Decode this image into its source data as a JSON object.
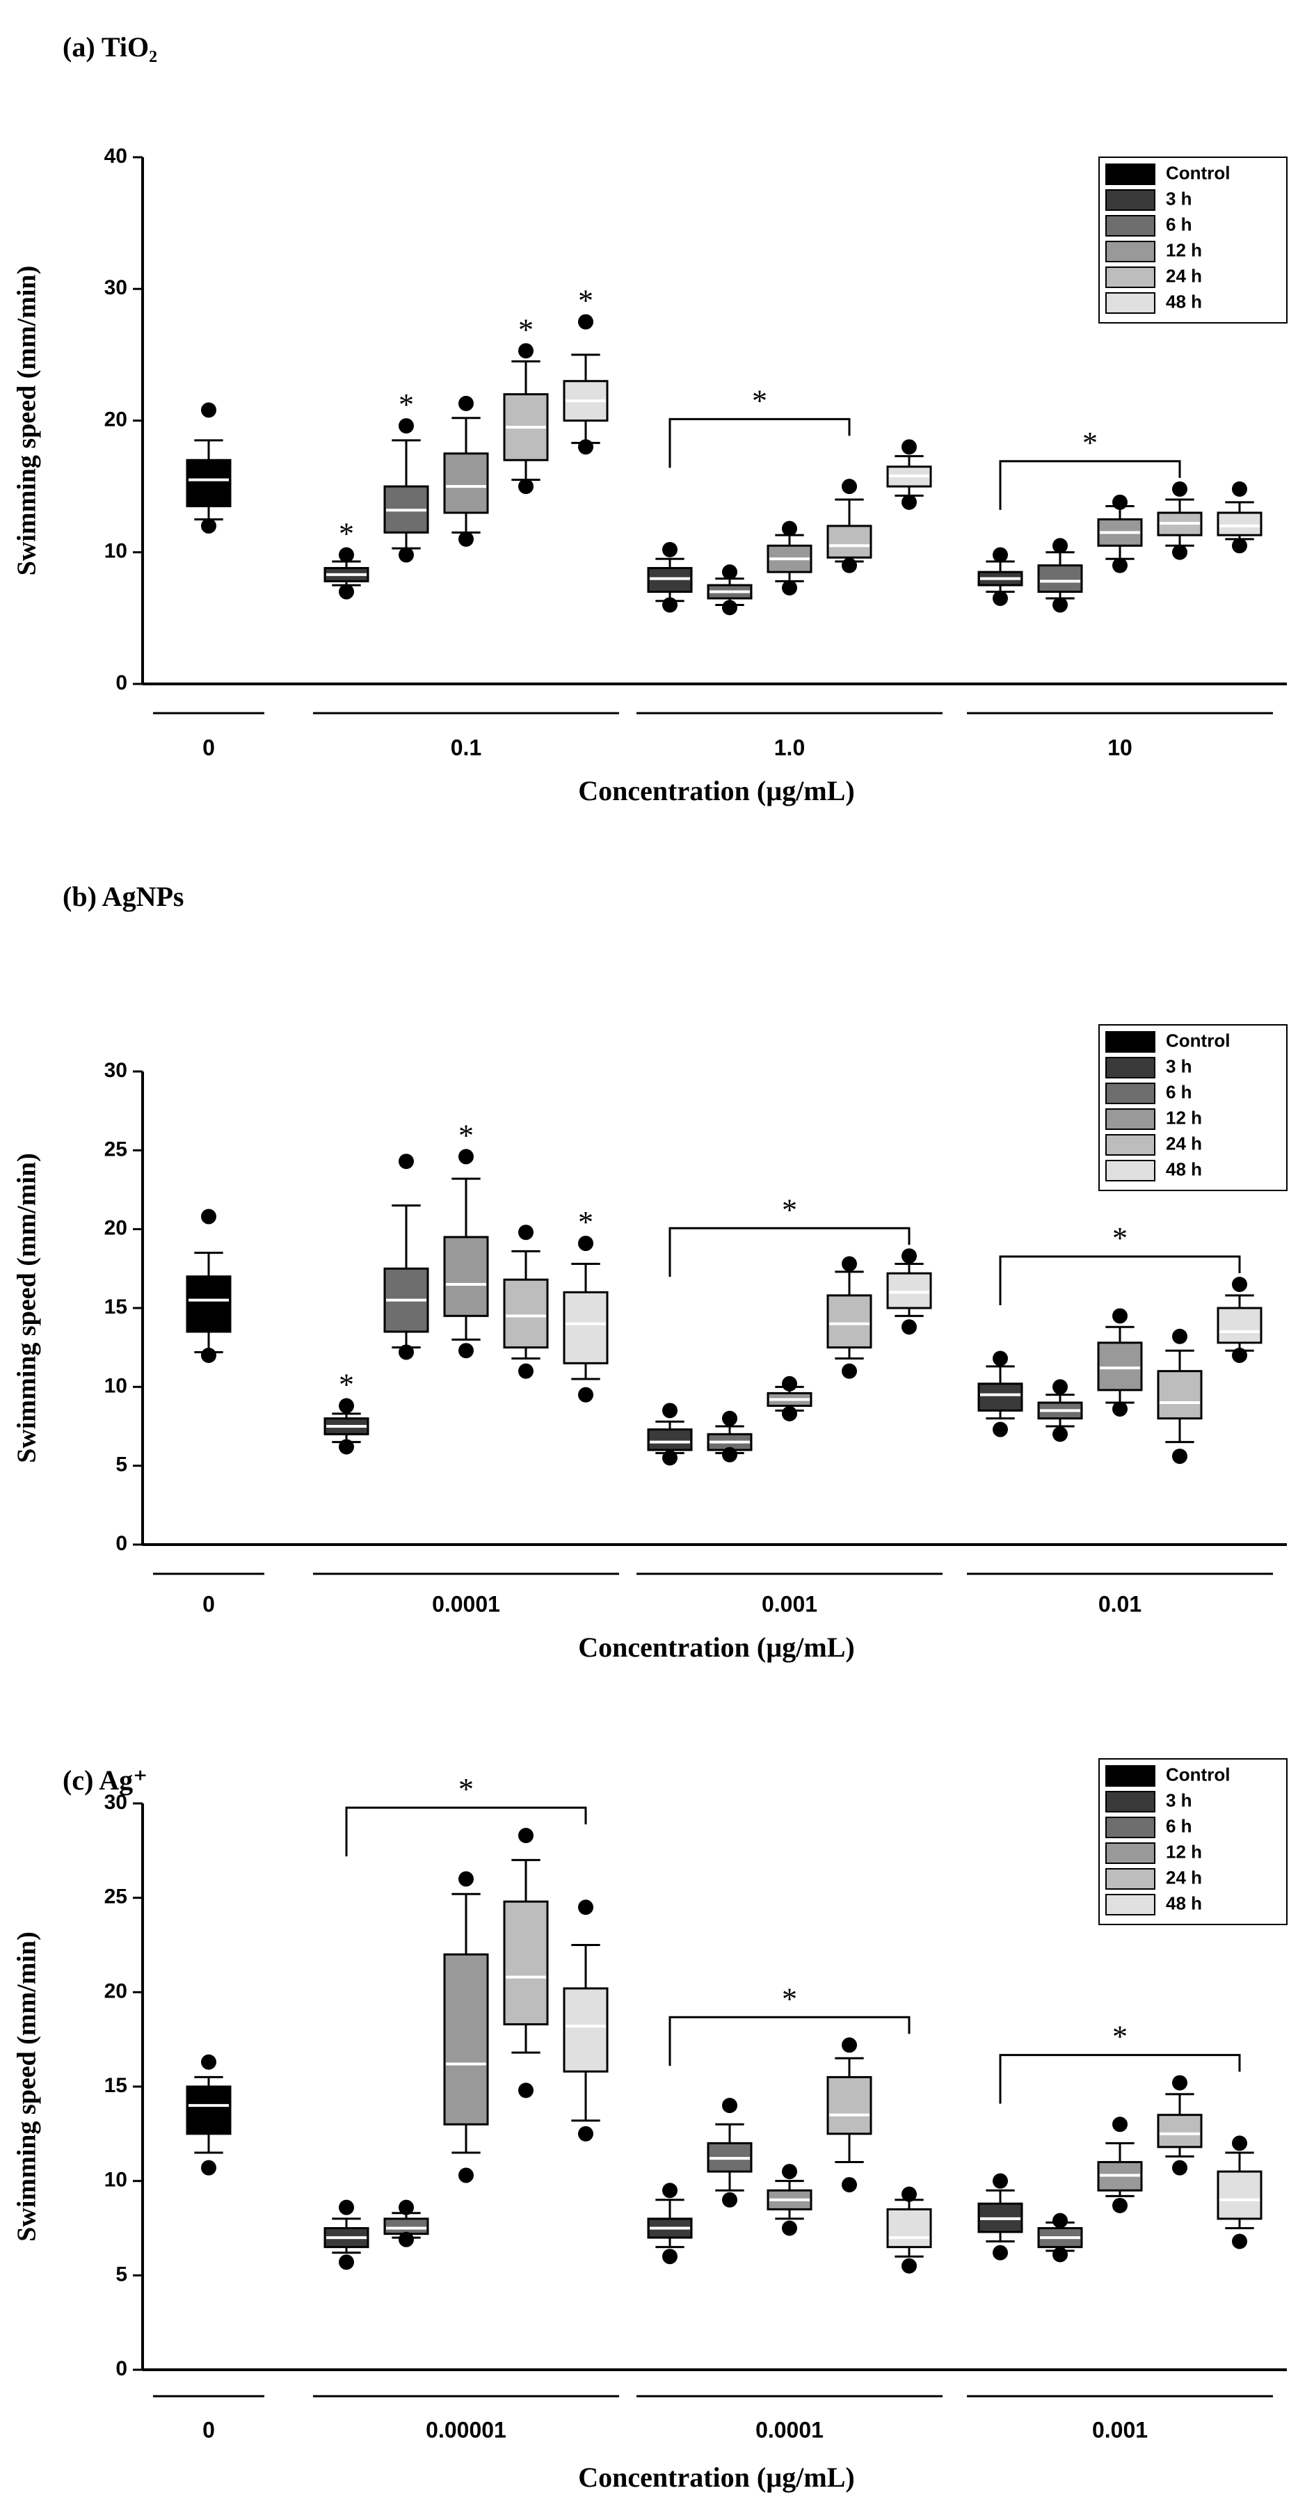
{
  "chart_data": [
    {
      "type": "box",
      "title": "(a) TiO₂",
      "x_label": "Concentration (µg/mL)",
      "y_label": "Swimming speed (mm/min)",
      "categories": [
        "0",
        "0.1",
        "1.0",
        "10"
      ],
      "ylim": [
        0,
        40
      ],
      "yticks": [
        0,
        10,
        20,
        30,
        40
      ],
      "legend": "upper right",
      "median_color": "#ffffff",
      "series": [
        {
          "name": "Control",
          "color": "#000000",
          "values": [
            {
              "min": 12.5,
              "q1": 13.5,
              "median": 15.5,
              "q3": 17,
              "max": 18.5,
              "outliers": [
                12,
                20.8
              ]
            },
            null,
            null,
            null
          ]
        },
        {
          "name": "3 h",
          "color": "#3a3a3a",
          "values": [
            null,
            {
              "min": 7.5,
              "q1": 7.8,
              "median": 8.3,
              "q3": 8.8,
              "max": 9.3,
              "outliers": [
                7,
                9.8
              ]
            },
            {
              "min": 6.3,
              "q1": 7,
              "median": 8,
              "q3": 8.8,
              "max": 9.5,
              "outliers": [
                6,
                10.2
              ]
            },
            {
              "min": 7,
              "q1": 7.5,
              "median": 8,
              "q3": 8.5,
              "max": 9.3,
              "outliers": [
                6.5,
                9.8
              ]
            }
          ]
        },
        {
          "name": "6 h",
          "color": "#6e6e6e",
          "values": [
            null,
            {
              "min": 10.3,
              "q1": 11.5,
              "median": 13.2,
              "q3": 15,
              "max": 18.5,
              "outliers": [
                9.8,
                19.6
              ]
            },
            {
              "min": 6,
              "q1": 6.5,
              "median": 7,
              "q3": 7.5,
              "max": 8,
              "outliers": [
                5.8,
                8.5
              ]
            },
            {
              "min": 6.5,
              "q1": 7,
              "median": 7.8,
              "q3": 9,
              "max": 10,
              "outliers": [
                6,
                10.5
              ]
            }
          ]
        },
        {
          "name": "12 h",
          "color": "#999999",
          "values": [
            null,
            {
              "min": 11.5,
              "q1": 13,
              "median": 15,
              "q3": 17.5,
              "max": 20.2,
              "outliers": [
                11,
                21.3
              ]
            },
            {
              "min": 7.8,
              "q1": 8.5,
              "median": 9.5,
              "q3": 10.5,
              "max": 11.3,
              "outliers": [
                7.3,
                11.8
              ]
            },
            {
              "min": 9.5,
              "q1": 10.5,
              "median": 11.5,
              "q3": 12.5,
              "max": 13.5,
              "outliers": [
                9,
                13.8
              ]
            }
          ]
        },
        {
          "name": "24 h",
          "color": "#bdbdbd",
          "values": [
            null,
            {
              "min": 15.5,
              "q1": 17,
              "median": 19.5,
              "q3": 22,
              "max": 24.5,
              "outliers": [
                15,
                25.3
              ]
            },
            {
              "min": 9.3,
              "q1": 9.6,
              "median": 10.5,
              "q3": 12,
              "max": 14,
              "outliers": [
                9,
                15
              ]
            },
            {
              "min": 10.5,
              "q1": 11.3,
              "median": 12.2,
              "q3": 13,
              "max": 14,
              "outliers": [
                10,
                14.8
              ]
            }
          ]
        },
        {
          "name": "48 h",
          "color": "#e0e0e0",
          "values": [
            null,
            {
              "min": 18.3,
              "q1": 20,
              "median": 21.5,
              "q3": 23,
              "max": 25,
              "outliers": [
                18,
                27.5
              ]
            },
            {
              "min": 14.3,
              "q1": 15,
              "median": 15.8,
              "q3": 16.5,
              "max": 17.3,
              "outliers": [
                13.8,
                18
              ]
            },
            {
              "min": 11,
              "q1": 11.3,
              "median": 12,
              "q3": 13,
              "max": 13.8,
              "outliers": [
                10.5,
                14.8
              ]
            }
          ]
        }
      ],
      "annotations": [
        {
          "text": "*",
          "category": "0.1",
          "series": "3 h"
        },
        {
          "text": "*",
          "category": "0.1",
          "series": "6 h"
        },
        {
          "text": "*",
          "category": "0.1",
          "series": "24 h"
        },
        {
          "text": "*",
          "category": "0.1",
          "series": "48 h"
        },
        {
          "text": "*",
          "category": "1.0",
          "from": "3 h",
          "to": "24 h"
        },
        {
          "text": "*",
          "category": "10",
          "from": "3 h",
          "to": "24 h"
        }
      ]
    },
    {
      "type": "box",
      "title": "(b) AgNPs",
      "x_label": "Concentration (µg/mL)",
      "y_label": "Swimming speed (mm/min)",
      "categories": [
        "0",
        "0.0001",
        "0.001",
        "0.01"
      ],
      "ylim": [
        0,
        30
      ],
      "yticks": [
        0,
        5,
        10,
        15,
        20,
        25,
        30
      ],
      "legend": "upper right",
      "median_color": "#ffffff",
      "series": [
        {
          "name": "Control",
          "color": "#000000",
          "values": [
            {
              "min": 12.2,
              "q1": 13.5,
              "median": 15.5,
              "q3": 17,
              "max": 18.5,
              "outliers": [
                12,
                20.8
              ]
            },
            null,
            null,
            null
          ]
        },
        {
          "name": "3 h",
          "color": "#3a3a3a",
          "values": [
            null,
            {
              "min": 6.5,
              "q1": 7,
              "median": 7.5,
              "q3": 8,
              "max": 8.3,
              "outliers": [
                6.2,
                8.8
              ]
            },
            {
              "min": 5.8,
              "q1": 6,
              "median": 6.5,
              "q3": 7.3,
              "max": 7.8,
              "outliers": [
                5.5,
                8.5
              ]
            },
            {
              "min": 8,
              "q1": 8.5,
              "median": 9.5,
              "q3": 10.2,
              "max": 11.3,
              "outliers": [
                7.3,
                11.8
              ]
            }
          ]
        },
        {
          "name": "6 h",
          "color": "#6e6e6e",
          "values": [
            null,
            {
              "min": 12.5,
              "q1": 13.5,
              "median": 15.5,
              "q3": 17.5,
              "max": 21.5,
              "outliers": [
                12.2,
                24.3
              ]
            },
            {
              "min": 5.8,
              "q1": 6,
              "median": 6.5,
              "q3": 7,
              "max": 7.5,
              "outliers": [
                5.7,
                8
              ]
            },
            {
              "min": 7.5,
              "q1": 8,
              "median": 8.5,
              "q3": 9,
              "max": 9.5,
              "outliers": [
                7,
                10
              ]
            }
          ]
        },
        {
          "name": "12 h",
          "color": "#999999",
          "values": [
            null,
            {
              "min": 13,
              "q1": 14.5,
              "median": 16.5,
              "q3": 19.5,
              "max": 23.2,
              "outliers": [
                12.3,
                24.6
              ]
            },
            {
              "min": 8.5,
              "q1": 8.8,
              "median": 9.2,
              "q3": 9.6,
              "max": 10,
              "outliers": [
                8.3,
                10.2
              ]
            },
            {
              "min": 9,
              "q1": 9.8,
              "median": 11.2,
              "q3": 12.8,
              "max": 13.8,
              "outliers": [
                8.6,
                14.5
              ]
            }
          ]
        },
        {
          "name": "24 h",
          "color": "#bdbdbd",
          "values": [
            null,
            {
              "min": 11.8,
              "q1": 12.5,
              "median": 14.5,
              "q3": 16.8,
              "max": 18.6,
              "outliers": [
                11,
                19.8
              ]
            },
            {
              "min": 11.8,
              "q1": 12.5,
              "median": 14,
              "q3": 15.8,
              "max": 17.3,
              "outliers": [
                11,
                17.8
              ]
            },
            {
              "min": 6.5,
              "q1": 8,
              "median": 9,
              "q3": 11,
              "max": 12.3,
              "outliers": [
                5.6,
                13.2
              ]
            }
          ]
        },
        {
          "name": "48 h",
          "color": "#e0e0e0",
          "values": [
            null,
            {
              "min": 10.5,
              "q1": 11.5,
              "median": 14,
              "q3": 16,
              "max": 17.8,
              "outliers": [
                9.5,
                19.1
              ]
            },
            {
              "min": 14.5,
              "q1": 15,
              "median": 16,
              "q3": 17.2,
              "max": 17.8,
              "outliers": [
                13.8,
                18.3
              ]
            },
            {
              "min": 12.3,
              "q1": 12.8,
              "median": 13.5,
              "q3": 15,
              "max": 15.8,
              "outliers": [
                12,
                16.5
              ]
            }
          ]
        }
      ],
      "annotations": [
        {
          "text": "*",
          "category": "0.0001",
          "series": "3 h"
        },
        {
          "text": "*",
          "category": "0.0001",
          "series": "12 h"
        },
        {
          "text": "*",
          "category": "0.0001",
          "series": "48 h"
        },
        {
          "text": "*",
          "category": "0.001",
          "from": "3 h",
          "to": "48 h"
        },
        {
          "text": "*",
          "category": "0.01",
          "from": "3 h",
          "to": "48 h"
        }
      ]
    },
    {
      "type": "box",
      "title": "(c) Ag⁺",
      "x_label": "Concentration (µg/mL)",
      "y_label": "Swimming speed (mm/min)",
      "categories": [
        "0",
        "0.00001",
        "0.0001",
        "0.001"
      ],
      "ylim": [
        0,
        30
      ],
      "yticks": [
        0,
        5,
        10,
        15,
        20,
        25,
        30
      ],
      "legend": "upper right",
      "median_color": "#ffffff",
      "series": [
        {
          "name": "Control",
          "color": "#000000",
          "values": [
            {
              "min": 11.5,
              "q1": 12.5,
              "median": 14,
              "q3": 15,
              "max": 15.5,
              "outliers": [
                10.7,
                16.3
              ]
            },
            null,
            null,
            null
          ]
        },
        {
          "name": "3 h",
          "color": "#3a3a3a",
          "values": [
            null,
            {
              "min": 6.2,
              "q1": 6.5,
              "median": 7,
              "q3": 7.5,
              "max": 8,
              "outliers": [
                5.7,
                8.6
              ]
            },
            {
              "min": 6.5,
              "q1": 7,
              "median": 7.5,
              "q3": 8,
              "max": 9,
              "outliers": [
                6,
                9.5
              ]
            },
            {
              "min": 6.8,
              "q1": 7.3,
              "median": 8,
              "q3": 8.8,
              "max": 9.5,
              "outliers": [
                6.2,
                10
              ]
            }
          ]
        },
        {
          "name": "6 h",
          "color": "#6e6e6e",
          "values": [
            null,
            {
              "min": 7,
              "q1": 7.2,
              "median": 7.5,
              "q3": 8,
              "max": 8.3,
              "outliers": [
                6.9,
                8.6
              ]
            },
            {
              "min": 9.5,
              "q1": 10.5,
              "median": 11.2,
              "q3": 12,
              "max": 13,
              "outliers": [
                9,
                14
              ]
            },
            {
              "min": 6.3,
              "q1": 6.5,
              "median": 7,
              "q3": 7.5,
              "max": 7.8,
              "outliers": [
                6.1,
                7.9
              ]
            }
          ]
        },
        {
          "name": "12 h",
          "color": "#999999",
          "values": [
            null,
            {
              "min": 11.5,
              "q1": 13,
              "median": 16.2,
              "q3": 22,
              "max": 25.2,
              "outliers": [
                10.3,
                26
              ]
            },
            {
              "min": 8,
              "q1": 8.5,
              "median": 9,
              "q3": 9.5,
              "max": 10,
              "outliers": [
                7.5,
                10.5
              ]
            },
            {
              "min": 9.2,
              "q1": 9.5,
              "median": 10.3,
              "q3": 11,
              "max": 12,
              "outliers": [
                8.7,
                13
              ]
            }
          ]
        },
        {
          "name": "24 h",
          "color": "#bdbdbd",
          "values": [
            null,
            {
              "min": 16.8,
              "q1": 18.3,
              "median": 20.8,
              "q3": 24.8,
              "max": 27,
              "outliers": [
                14.8,
                28.3
              ]
            },
            {
              "min": 11,
              "q1": 12.5,
              "median": 13.5,
              "q3": 15.5,
              "max": 16.5,
              "outliers": [
                9.8,
                17.2
              ]
            },
            {
              "min": 11.3,
              "q1": 11.8,
              "median": 12.5,
              "q3": 13.5,
              "max": 14.6,
              "outliers": [
                10.7,
                15.2
              ]
            }
          ]
        },
        {
          "name": "48 h",
          "color": "#e0e0e0",
          "values": [
            null,
            {
              "min": 13.2,
              "q1": 15.8,
              "median": 18.2,
              "q3": 20.2,
              "max": 22.5,
              "outliers": [
                12.5,
                24.5
              ]
            },
            {
              "min": 6,
              "q1": 6.5,
              "median": 7,
              "q3": 8.5,
              "max": 9,
              "outliers": [
                5.5,
                9.3
              ]
            },
            {
              "min": 7.5,
              "q1": 8,
              "median": 9,
              "q3": 10.5,
              "max": 11.5,
              "outliers": [
                6.8,
                12
              ]
            }
          ]
        }
      ],
      "annotations": [
        {
          "text": "*",
          "category": "0.00001",
          "from": "3 h",
          "to": "48 h"
        },
        {
          "text": "*",
          "category": "0.0001",
          "from": "3 h",
          "to": "48 h"
        },
        {
          "text": "*",
          "category": "0.001",
          "from": "3 h",
          "to": "48 h"
        }
      ]
    }
  ]
}
